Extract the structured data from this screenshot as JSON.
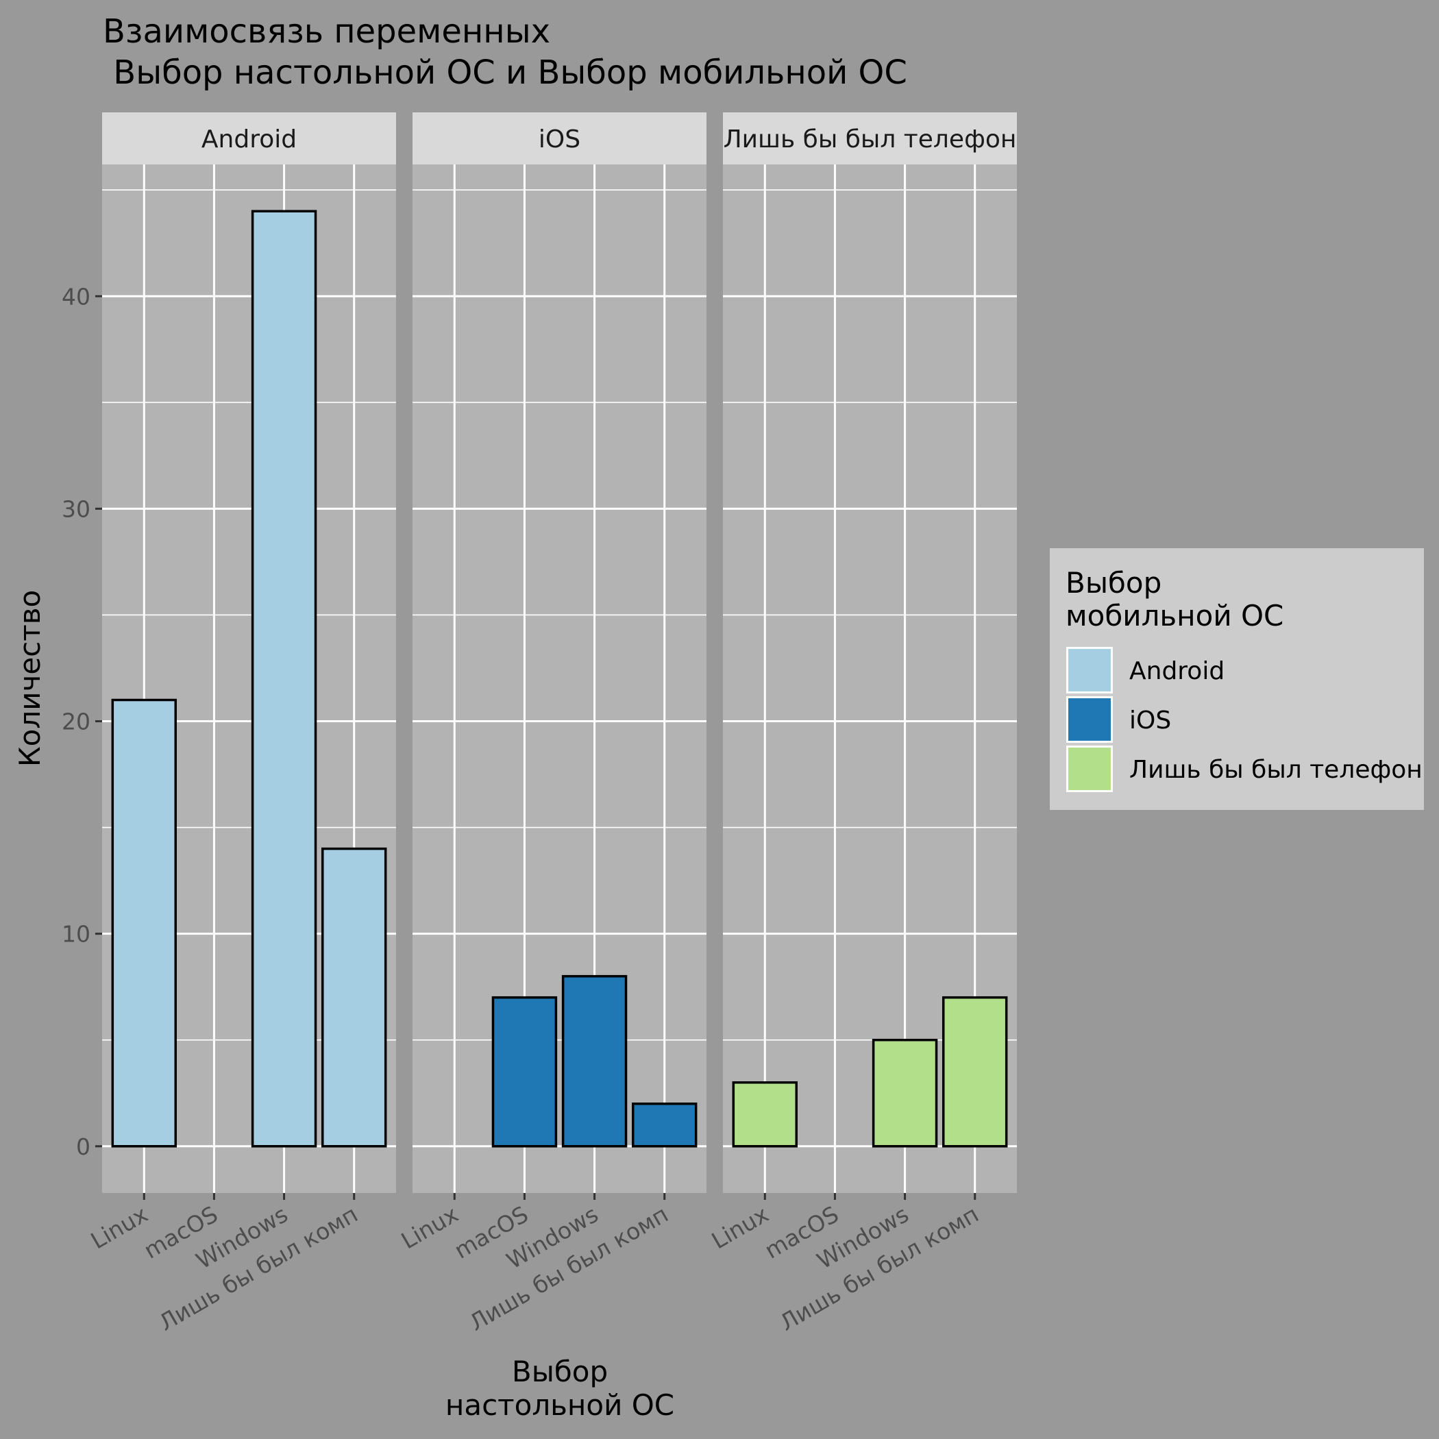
{
  "chart_data": {
    "type": "bar",
    "title_lines": [
      "Взаимосвязь переменных",
      " Выбор настольной ОС и Выбор мобильной ОС"
    ],
    "xlabel_lines": [
      "Выбор",
      "настольной ОС"
    ],
    "ylabel": "Количество",
    "categories": [
      "Linux",
      "macOS",
      "Windows",
      "Лишь бы был комп"
    ],
    "y_ticks": [
      0,
      10,
      20,
      30,
      40
    ],
    "ylim": [
      -2.2,
      46.2
    ],
    "grid": true,
    "legend": {
      "title_lines": [
        "Выбор",
        "мобильной ОС"
      ],
      "position": "right",
      "items": [
        {
          "label": "Android",
          "color": "#A6CEE3"
        },
        {
          "label": "iOS",
          "color": "#1F78B4"
        },
        {
          "label": "Лишь бы был телефон",
          "color": "#B2DF8A"
        }
      ]
    },
    "series": [
      {
        "name": "Android",
        "color": "#A6CEE3",
        "values": [
          21,
          0,
          44,
          14
        ]
      },
      {
        "name": "iOS",
        "color": "#1F78B4",
        "values": [
          0,
          7,
          8,
          2
        ]
      },
      {
        "name": "Лишь бы был телефон",
        "color": "#B2DF8A",
        "values": [
          3,
          0,
          5,
          7
        ]
      }
    ]
  }
}
